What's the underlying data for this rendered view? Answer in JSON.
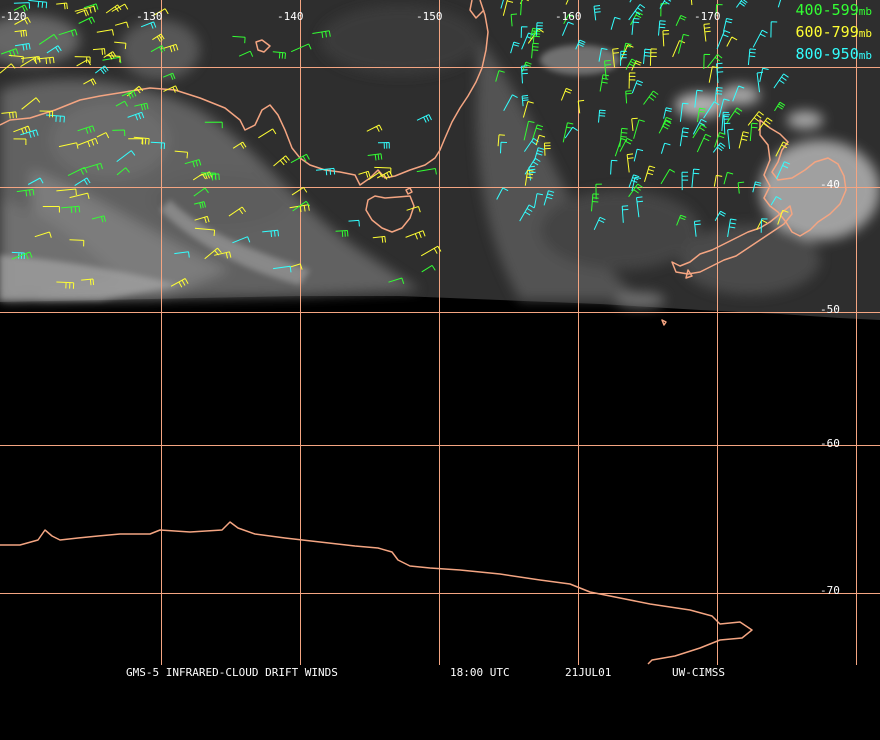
{
  "map": {
    "longitude_labels": [
      "-120",
      "-130",
      "-140",
      "-150",
      "-160",
      "-170"
    ],
    "latitude_labels": [
      "-40",
      "-50",
      "-60",
      "-70"
    ],
    "colors": {
      "gridline": "#f4a582",
      "coastline": "#f4a582",
      "background": "#000000",
      "label_text": "#ffffff"
    }
  },
  "legend": {
    "items": [
      {
        "range": "400-599",
        "unit": "mb",
        "color": "#33ff33"
      },
      {
        "range": "600-799",
        "unit": "mb",
        "color": "#ffff33"
      },
      {
        "range": "800-950",
        "unit": "mb",
        "color": "#33ffff"
      }
    ]
  },
  "footer": {
    "product": "GMS-5 INFRARED-CLOUD DRIFT WINDS",
    "time": "18:00 UTC",
    "date": "21JUL01",
    "source": "UW-CIMSS"
  }
}
